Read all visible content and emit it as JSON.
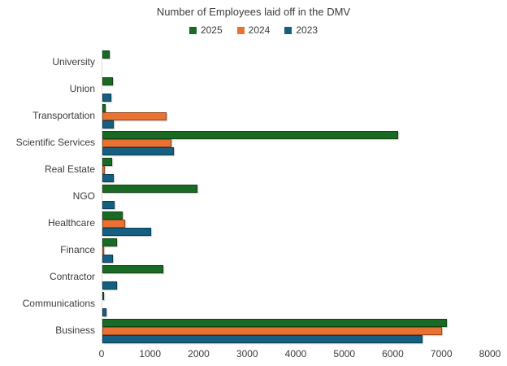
{
  "title": "Number of Employees laid off in the DMV",
  "chart_data": {
    "type": "bar",
    "orientation": "horizontal",
    "title": "Number of Employees laid off in the DMV",
    "categories": [
      "University",
      "Union",
      "Transportation",
      "Scientific Services",
      "Real Estate",
      "NGO",
      "Healthcare",
      "Finance",
      "Contractor",
      "Communications",
      "Business"
    ],
    "series": [
      {
        "name": "2025",
        "color": "#196B24",
        "values": [
          150,
          225,
          60,
          6100,
          200,
          1950,
          425,
          300,
          1250,
          30,
          7100
        ]
      },
      {
        "name": "2024",
        "color": "#E97132",
        "values": [
          0,
          0,
          1330,
          1425,
          50,
          0,
          475,
          40,
          0,
          0,
          7000
        ]
      },
      {
        "name": "2023",
        "color": "#156082",
        "values": [
          0,
          190,
          240,
          1475,
          240,
          250,
          1000,
          225,
          300,
          80,
          6600
        ]
      }
    ],
    "xlabel": "",
    "ylabel": "",
    "xlim": [
      0,
      8000
    ],
    "xticks": [
      0,
      1000,
      2000,
      3000,
      4000,
      5000,
      6000,
      7000,
      8000
    ],
    "grid": false,
    "legend_position": "top",
    "axis_line_color": "#d9d9d9"
  }
}
